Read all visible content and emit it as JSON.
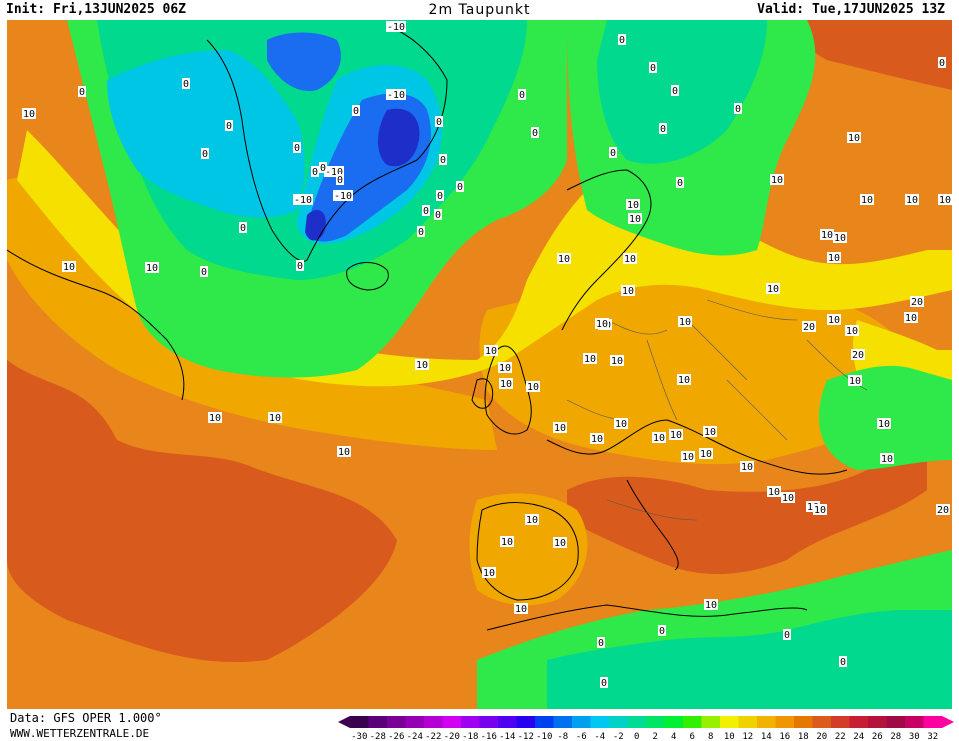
{
  "header": {
    "init": "Init: Fri,13JUN2025 06Z",
    "title": "2m Taupunkt",
    "valid": "Valid: Tue,17JUN2025 13Z"
  },
  "footer": {
    "source": "Data: GFS OPER 1.000°",
    "website": "WWW.WETTERZENTRALE.DE"
  },
  "colorbar": {
    "ticks": [
      "-30",
      "-28",
      "-26",
      "-24",
      "-22",
      "-20",
      "-18",
      "-16",
      "-14",
      "-12",
      "-10",
      "-8",
      "-6",
      "-4",
      "-2",
      "0",
      "2",
      "4",
      "6",
      "8",
      "10",
      "12",
      "14",
      "16",
      "18",
      "20",
      "22",
      "24",
      "26",
      "28",
      "30",
      "32"
    ],
    "colors": [
      "#3c0050",
      "#5a0078",
      "#7a0096",
      "#9600b4",
      "#b400d2",
      "#d200f0",
      "#a000f0",
      "#7800f0",
      "#5000f0",
      "#2800f0",
      "#0040f0",
      "#0070f0",
      "#00a0f0",
      "#00c8f0",
      "#00d2c8",
      "#00dc96",
      "#00e664",
      "#00f032",
      "#32f000",
      "#96f000",
      "#f0f000",
      "#f0d200",
      "#f0b400",
      "#f09600",
      "#e67800",
      "#dc5a1e",
      "#d23c28",
      "#c81e32",
      "#b4143c",
      "#a00a46",
      "#c80064",
      "#ff00a0"
    ]
  },
  "map": {
    "colors": {
      "sea_warm": "#e8861c",
      "warm_dark": "#d85a1c",
      "mid_orange": "#f0a800",
      "yellow": "#f5e000",
      "green": "#2fe84a",
      "teal": "#00d98e",
      "cyan": "#00c6e6",
      "blue": "#1a6cf0",
      "deep_blue": "#1d2fc8",
      "coast": "#000000",
      "label_bg": "#ffffff"
    },
    "contour_labels": [
      "-10",
      "-10",
      "-10",
      "-10",
      "-10",
      "0",
      "0",
      "0",
      "0",
      "0",
      "0",
      "0",
      "0",
      "0",
      "0",
      "0",
      "0",
      "0",
      "0",
      "0",
      "0",
      "0",
      "0",
      "0",
      "0",
      "0",
      "0",
      "0",
      "0",
      "0",
      "0",
      "0",
      "0",
      "0",
      "0",
      "0",
      "0",
      "0",
      "0",
      "10",
      "10",
      "10",
      "10",
      "10",
      "10",
      "10",
      "10",
      "10",
      "10",
      "10",
      "10",
      "10",
      "10",
      "10",
      "10",
      "10",
      "10",
      "10",
      "10",
      "10",
      "10",
      "10",
      "10",
      "10",
      "10",
      "10",
      "10",
      "10",
      "10",
      "10",
      "10",
      "10",
      "10",
      "10",
      "10",
      "10",
      "10",
      "10",
      "10",
      "10",
      "10",
      "10",
      "10",
      "10",
      "10",
      "10",
      "10",
      "10",
      "10",
      "10",
      "10",
      "10",
      "10",
      "10",
      "10",
      "20",
      "20",
      "20",
      "20"
    ]
  }
}
